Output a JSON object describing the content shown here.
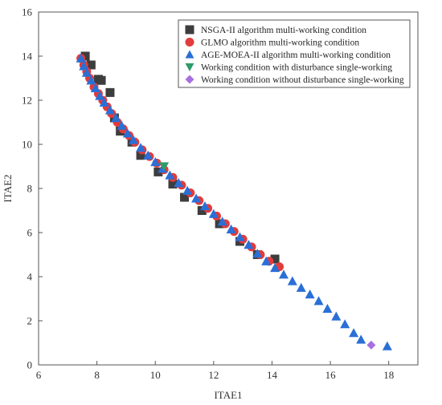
{
  "chart_data": {
    "type": "scatter",
    "xlabel": "ITAE1",
    "ylabel": "ITAE2",
    "xlim": [
      6,
      19
    ],
    "ylim": [
      0,
      16
    ],
    "x_ticks": [
      "6",
      "8",
      "10",
      "12",
      "14",
      "16",
      "18"
    ],
    "y_ticks": [
      "0",
      "2",
      "4",
      "6",
      "8",
      "10",
      "12",
      "14",
      "16"
    ],
    "grid": false,
    "legend_position": "top-right",
    "series": [
      {
        "name": "NSGA-II algorithm multi-working condition",
        "marker": "square",
        "color": "#3d3d3d",
        "points": [
          [
            7.6,
            14.0
          ],
          [
            7.8,
            13.6
          ],
          [
            8.05,
            12.95
          ],
          [
            8.15,
            12.9
          ],
          [
            8.45,
            12.35
          ],
          [
            8.6,
            11.2
          ],
          [
            8.8,
            10.6
          ],
          [
            9.2,
            10.1
          ],
          [
            9.5,
            9.5
          ],
          [
            10.1,
            8.75
          ],
          [
            10.6,
            8.2
          ],
          [
            11.0,
            7.6
          ],
          [
            11.6,
            7.0
          ],
          [
            12.2,
            6.4
          ],
          [
            12.9,
            5.6
          ],
          [
            13.5,
            5.0
          ],
          [
            14.1,
            4.8
          ]
        ]
      },
      {
        "name": "GLMO algorithm multi-working condition",
        "marker": "circle",
        "color": "#e23b3b",
        "points": [
          [
            7.45,
            13.9
          ],
          [
            7.55,
            13.6
          ],
          [
            7.65,
            13.3
          ],
          [
            7.75,
            13.0
          ],
          [
            7.9,
            12.6
          ],
          [
            8.05,
            12.3
          ],
          [
            8.2,
            12.0
          ],
          [
            8.35,
            11.7
          ],
          [
            8.5,
            11.4
          ],
          [
            8.7,
            11.0
          ],
          [
            8.9,
            10.7
          ],
          [
            9.1,
            10.4
          ],
          [
            9.3,
            10.1
          ],
          [
            9.55,
            9.75
          ],
          [
            9.8,
            9.45
          ],
          [
            10.05,
            9.15
          ],
          [
            10.3,
            8.85
          ],
          [
            10.6,
            8.5
          ],
          [
            10.9,
            8.15
          ],
          [
            11.2,
            7.8
          ],
          [
            11.5,
            7.45
          ],
          [
            11.8,
            7.1
          ],
          [
            12.1,
            6.75
          ],
          [
            12.4,
            6.4
          ],
          [
            12.7,
            6.05
          ],
          [
            13.0,
            5.7
          ],
          [
            13.3,
            5.35
          ],
          [
            13.6,
            5.0
          ],
          [
            13.9,
            4.7
          ],
          [
            14.25,
            4.45
          ]
        ]
      },
      {
        "name": "AGE-MOEA-II algorithm multi-working condition",
        "marker": "triangle-up",
        "color": "#2a6fd6",
        "points": [
          [
            7.45,
            13.9
          ],
          [
            7.55,
            13.55
          ],
          [
            7.65,
            13.25
          ],
          [
            7.8,
            12.9
          ],
          [
            7.95,
            12.55
          ],
          [
            8.1,
            12.2
          ],
          [
            8.25,
            11.9
          ],
          [
            8.45,
            11.55
          ],
          [
            8.65,
            11.2
          ],
          [
            8.85,
            10.85
          ],
          [
            9.05,
            10.5
          ],
          [
            9.25,
            10.2
          ],
          [
            9.5,
            9.85
          ],
          [
            9.75,
            9.5
          ],
          [
            10.0,
            9.2
          ],
          [
            10.25,
            8.9
          ],
          [
            10.5,
            8.6
          ],
          [
            10.8,
            8.25
          ],
          [
            11.1,
            7.9
          ],
          [
            11.4,
            7.55
          ],
          [
            11.7,
            7.2
          ],
          [
            12.0,
            6.85
          ],
          [
            12.3,
            6.5
          ],
          [
            12.6,
            6.15
          ],
          [
            12.9,
            5.8
          ],
          [
            13.2,
            5.45
          ],
          [
            13.5,
            5.05
          ],
          [
            13.8,
            4.7
          ],
          [
            14.1,
            4.4
          ],
          [
            14.4,
            4.1
          ],
          [
            14.7,
            3.8
          ],
          [
            15.0,
            3.5
          ],
          [
            15.3,
            3.2
          ],
          [
            15.6,
            2.9
          ],
          [
            15.9,
            2.55
          ],
          [
            16.2,
            2.2
          ],
          [
            16.5,
            1.85
          ],
          [
            16.8,
            1.45
          ],
          [
            17.05,
            1.15
          ],
          [
            17.95,
            0.85
          ]
        ]
      },
      {
        "name": "Working condition with disturbance single-working",
        "marker": "triangle-down",
        "color": "#2e9c6a",
        "points": [
          [
            10.3,
            9.0
          ]
        ]
      },
      {
        "name": "Working condition without disturbance single-working",
        "marker": "diamond",
        "color": "#a86fe0",
        "points": [
          [
            17.4,
            0.9
          ]
        ]
      }
    ]
  }
}
